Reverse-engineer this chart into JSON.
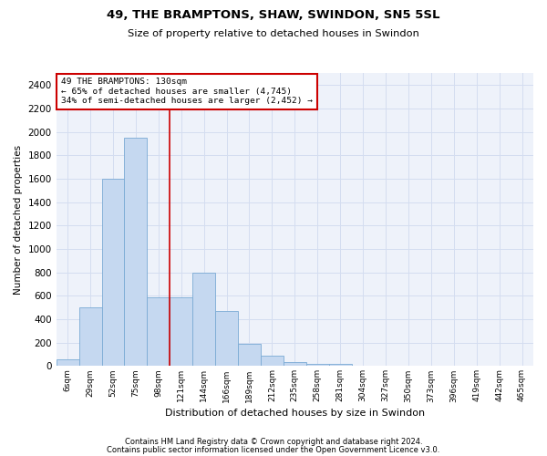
{
  "title_line1": "49, THE BRAMPTONS, SHAW, SWINDON, SN5 5SL",
  "title_line2": "Size of property relative to detached houses in Swindon",
  "xlabel": "Distribution of detached houses by size in Swindon",
  "ylabel": "Number of detached properties",
  "footer_line1": "Contains HM Land Registry data © Crown copyright and database right 2024.",
  "footer_line2": "Contains public sector information licensed under the Open Government Licence v3.0.",
  "annotation_line1": "49 THE BRAMPTONS: 130sqm",
  "annotation_line2": "← 65% of detached houses are smaller (4,745)",
  "annotation_line3": "34% of semi-detached houses are larger (2,452) →",
  "bar_color": "#c5d8f0",
  "bar_edge_color": "#7aaad4",
  "grid_color": "#d4ddf0",
  "background_color": "#eef2fa",
  "vline_color": "#cc0000",
  "vline_x": 4.5,
  "categories": [
    "6sqm",
    "29sqm",
    "52sqm",
    "75sqm",
    "98sqm",
    "121sqm",
    "144sqm",
    "166sqm",
    "189sqm",
    "212sqm",
    "235sqm",
    "258sqm",
    "281sqm",
    "304sqm",
    "327sqm",
    "350sqm",
    "373sqm",
    "396sqm",
    "419sqm",
    "442sqm",
    "465sqm"
  ],
  "values": [
    55,
    500,
    1600,
    1950,
    590,
    590,
    800,
    470,
    190,
    85,
    35,
    20,
    15,
    5,
    0,
    0,
    0,
    0,
    0,
    0,
    0
  ],
  "ylim": [
    0,
    2500
  ],
  "yticks": [
    0,
    200,
    400,
    600,
    800,
    1000,
    1200,
    1400,
    1600,
    1800,
    2000,
    2200,
    2400
  ]
}
